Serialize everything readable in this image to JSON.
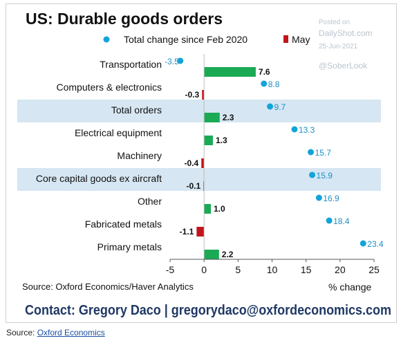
{
  "watermark": {
    "posted_on": "Posted on",
    "site": "DailyShot.com",
    "date": "25-Jun-2021",
    "handle": "@SoberLook"
  },
  "footer": {
    "source_prefix": "Source:",
    "source_link": "Oxford Economics"
  },
  "colors": {
    "bar": "#1aaa55",
    "bar_negative": "#c0161b",
    "dot": "#12a4d9",
    "dot_label": "#1a8fc4",
    "band": "#d6e6f3",
    "title": "#111111",
    "contact": "#1f3864"
  },
  "chart_data": {
    "type": "bar",
    "orientation": "horizontal",
    "title": "US: Durable goods orders",
    "source": "Source: Oxford Economics/Haver Analytics",
    "contact": "Contact: Gregory Daco | gregorydaco@oxfordeconomics.com",
    "xlabel": "% change",
    "xlim": [
      -5,
      25
    ],
    "xticks": [
      -5,
      0,
      5,
      10,
      15,
      20,
      25
    ],
    "legend": {
      "position": "top",
      "entries": [
        "Total change since Feb 2020",
        "May"
      ]
    },
    "categories": [
      "Transportation",
      "Computers & electronics",
      "Total orders",
      "Electrical equipment",
      "Machinery",
      "Core capital goods ex aircraft",
      "Other",
      "Fabricated metals",
      "Primary metals"
    ],
    "highlighted": [
      "Total orders",
      "Core capital goods ex aircraft"
    ],
    "series": [
      {
        "name": "May",
        "type": "bar",
        "values": [
          7.6,
          -0.3,
          2.3,
          1.3,
          -0.4,
          -0.1,
          1.0,
          -1.1,
          2.2
        ]
      },
      {
        "name": "Total change since Feb 2020",
        "type": "dot",
        "values": [
          -3.5,
          8.8,
          9.7,
          13.3,
          15.7,
          15.9,
          16.9,
          18.4,
          23.4
        ]
      }
    ]
  }
}
